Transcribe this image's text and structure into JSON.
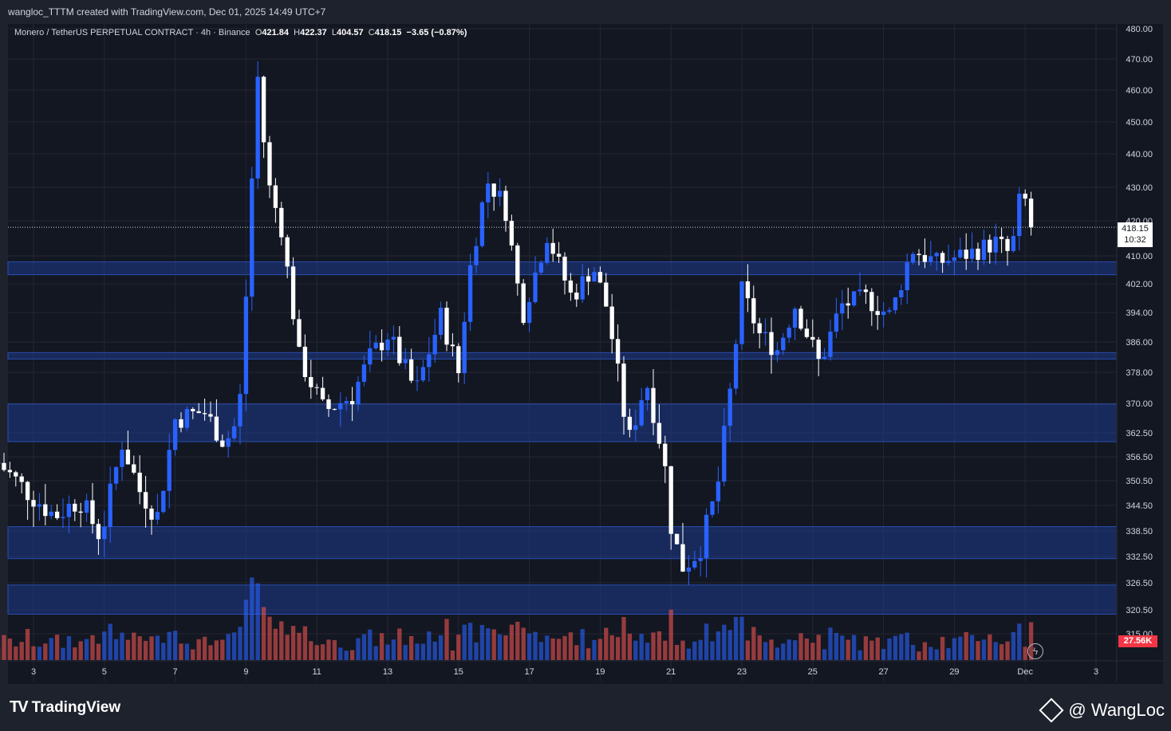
{
  "header": {
    "attribution": "wangloc_TTTM created with TradingView.com, Dec 01, 2025 14:49 UTC+7"
  },
  "legend": {
    "symbol": "Monero / TetherUS PERPETUAL CONTRACT · 4h · Binance",
    "open_label": "O",
    "open": "421.84",
    "high_label": "H",
    "high": "422.37",
    "low_label": "L",
    "low": "404.57",
    "close_label": "C",
    "close": "418.15",
    "change": "−3.65 (−0.87%)"
  },
  "last_price": {
    "value": "418.15",
    "countdown": "10:32"
  },
  "volume_label": "27.56K",
  "footer": {
    "brand": "TradingView",
    "author": "@ WangLoc"
  },
  "colors": {
    "background": "#131722",
    "up_candle": "#2962ff",
    "down_candle": "#ffffff",
    "zone": "#1e3a8a",
    "volume_up": "#2962ff",
    "volume_down": "#ef5350"
  },
  "chart_data": {
    "type": "candlestick",
    "timeframe": "4h",
    "x_ticks": [
      "3",
      "5",
      "7",
      "9",
      "11",
      "13",
      "15",
      "17",
      "19",
      "21",
      "23",
      "25",
      "27",
      "29",
      "Dec",
      "3"
    ],
    "y_ticks": [
      480.0,
      470.0,
      460.0,
      450.0,
      440.0,
      430.0,
      420.0,
      410.0,
      402.0,
      394.0,
      386.0,
      378.0,
      370.0,
      362.5,
      356.5,
      350.5,
      344.5,
      338.5,
      332.5,
      326.5,
      320.5,
      315.0
    ],
    "y_tick_labels": [
      "480.00",
      "470.00",
      "460.00",
      "450.00",
      "440.00",
      "430.00",
      "420.00",
      "410.00",
      "402.00",
      "394.00",
      "386.00",
      "378.00",
      "370.00",
      "362.50",
      "356.50",
      "350.50",
      "344.50",
      "338.50",
      "332.50",
      "326.50",
      "320.50",
      "315.00"
    ],
    "zones": [
      {
        "from": 404.6,
        "to": 408.3
      },
      {
        "from": 381.5,
        "to": 383.2
      },
      {
        "from": 360.3,
        "to": 369.8
      },
      {
        "from": 332.0,
        "to": 339.5
      },
      {
        "from": 319.5,
        "to": 326.0
      }
    ],
    "anchors": [
      {
        "day": 2.0,
        "price": 355.0
      },
      {
        "day": 2.8,
        "price": 348.0
      },
      {
        "day": 3.6,
        "price": 342.0
      },
      {
        "day": 4.3,
        "price": 346.0
      },
      {
        "day": 4.9,
        "price": 337.0
      },
      {
        "day": 5.5,
        "price": 360.0
      },
      {
        "day": 6.0,
        "price": 348.0
      },
      {
        "day": 6.5,
        "price": 342.0
      },
      {
        "day": 7.0,
        "price": 366.0
      },
      {
        "day": 7.8,
        "price": 368.0
      },
      {
        "day": 8.4,
        "price": 360.0
      },
      {
        "day": 8.8,
        "price": 366.0
      },
      {
        "day": 9.1,
        "price": 415.0
      },
      {
        "day": 9.3,
        "price": 468.0
      },
      {
        "day": 9.6,
        "price": 432.0
      },
      {
        "day": 10.0,
        "price": 418.0
      },
      {
        "day": 10.5,
        "price": 382.0
      },
      {
        "day": 11.2,
        "price": 368.0
      },
      {
        "day": 12.0,
        "price": 372.0
      },
      {
        "day": 12.5,
        "price": 382.0
      },
      {
        "day": 13.0,
        "price": 388.0
      },
      {
        "day": 13.8,
        "price": 373.0
      },
      {
        "day": 14.5,
        "price": 393.0
      },
      {
        "day": 15.0,
        "price": 378.0
      },
      {
        "day": 15.3,
        "price": 405.0
      },
      {
        "day": 15.8,
        "price": 432.0
      },
      {
        "day": 16.3,
        "price": 425.0
      },
      {
        "day": 16.8,
        "price": 393.0
      },
      {
        "day": 17.5,
        "price": 416.0
      },
      {
        "day": 18.2,
        "price": 398.0
      },
      {
        "day": 18.8,
        "price": 407.0
      },
      {
        "day": 19.2,
        "price": 395.0
      },
      {
        "day": 19.8,
        "price": 360.0
      },
      {
        "day": 20.3,
        "price": 376.0
      },
      {
        "day": 20.8,
        "price": 356.0
      },
      {
        "day": 21.0,
        "price": 340.0
      },
      {
        "day": 21.3,
        "price": 330.0
      },
      {
        "day": 21.8,
        "price": 334.0
      },
      {
        "day": 22.3,
        "price": 348.0
      },
      {
        "day": 22.7,
        "price": 375.0
      },
      {
        "day": 23.0,
        "price": 400.0
      },
      {
        "day": 23.5,
        "price": 388.0
      },
      {
        "day": 24.0,
        "price": 384.0
      },
      {
        "day": 24.5,
        "price": 396.0
      },
      {
        "day": 25.2,
        "price": 380.0
      },
      {
        "day": 25.8,
        "price": 396.0
      },
      {
        "day": 26.5,
        "price": 398.0
      },
      {
        "day": 27.2,
        "price": 393.0
      },
      {
        "day": 27.8,
        "price": 412.0
      },
      {
        "day": 28.5,
        "price": 408.0
      },
      {
        "day": 29.5,
        "price": 411.0
      },
      {
        "day": 30.2,
        "price": 414.0
      },
      {
        "day": 30.6,
        "price": 410.0
      },
      {
        "day": 30.9,
        "price": 430.0
      },
      {
        "day": 31.1,
        "price": 421.8
      },
      {
        "day": 31.2,
        "price": 418.15
      }
    ],
    "last_close": 418.15
  }
}
